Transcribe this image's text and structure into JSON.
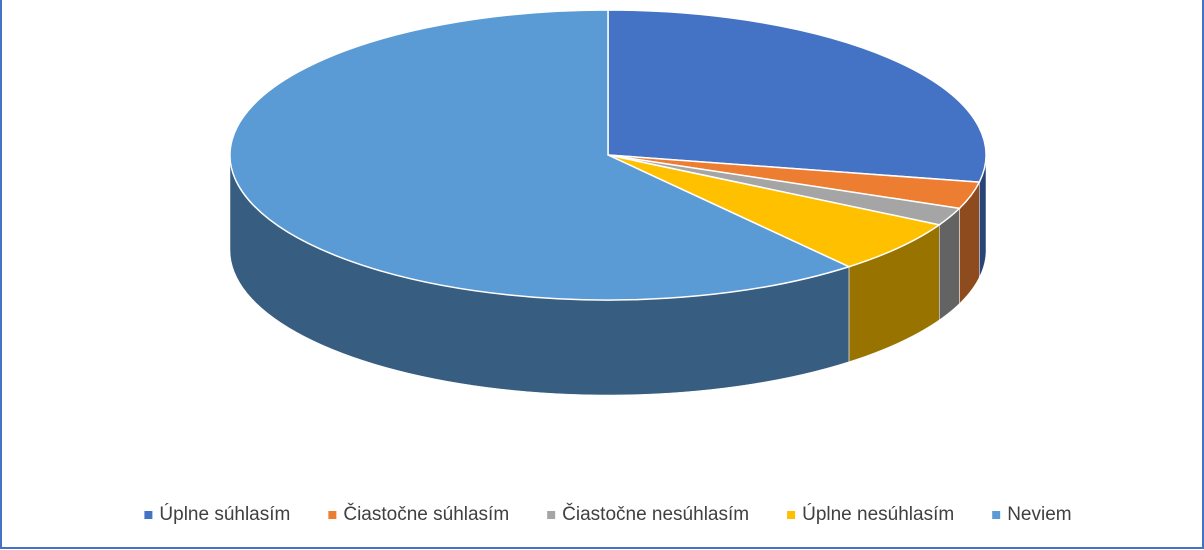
{
  "chart_data": {
    "type": "pie",
    "categories": [
      "Úplne súhlasím",
      "Čiastočne súhlasím",
      "Čiastočne nesúhlasím",
      "Úplne nesúhlasím",
      "Neviem"
    ],
    "values": [
      28,
      3,
      2,
      6,
      61
    ],
    "colors": [
      "#4472c4",
      "#ed7d31",
      "#a5a5a5",
      "#ffc000",
      "#5b9bd5"
    ],
    "legend": "bottom"
  }
}
